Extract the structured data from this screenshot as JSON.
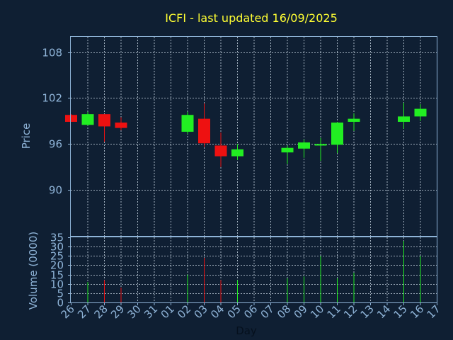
{
  "colors": {
    "background": "#0f1f33",
    "axis": "#8fb4d8",
    "grid": "#c9d6e3",
    "title": "#ffff33",
    "label": "#8fb4d8",
    "up": "#22ee22",
    "down": "#ee1111"
  },
  "chart_data": {
    "type": "candlestick",
    "title": "ICFI - last updated 16/09/2025",
    "xlabel": "Day",
    "price_panel": {
      "ylabel": "Price",
      "ylim": [
        84,
        110
      ],
      "yticks": [
        90,
        96,
        102,
        108
      ],
      "grid": true
    },
    "volume_panel": {
      "ylabel": "Volume (0000)",
      "ylim": [
        0,
        35
      ],
      "yticks": [
        0,
        5,
        10,
        15,
        20,
        25,
        30,
        35
      ],
      "grid": true
    },
    "x_ticks": [
      "26",
      "27",
      "28",
      "29",
      "30",
      "31",
      "01",
      "02",
      "03",
      "04",
      "05",
      "06",
      "07",
      "08",
      "09",
      "10",
      "11",
      "12",
      "13",
      "14",
      "15",
      "16",
      "17"
    ],
    "candles": [
      {
        "day": "26",
        "open": 99.8,
        "high": 99.9,
        "low": 98.9,
        "close": 98.9,
        "volume": 0
      },
      {
        "day": "27",
        "open": 98.5,
        "high": 100.2,
        "low": 98.4,
        "close": 99.9,
        "volume": 11
      },
      {
        "day": "28",
        "open": 99.9,
        "high": 99.9,
        "low": 96.3,
        "close": 98.3,
        "volume": 12
      },
      {
        "day": "29",
        "open": 98.8,
        "high": 99.5,
        "low": 97.8,
        "close": 98.1,
        "volume": 8
      },
      {
        "day": "02",
        "open": 97.6,
        "high": 100.2,
        "low": 97.3,
        "close": 99.8,
        "volume": 15
      },
      {
        "day": "03",
        "open": 99.3,
        "high": 101.3,
        "low": 95.6,
        "close": 96.1,
        "volume": 24
      },
      {
        "day": "04",
        "open": 95.8,
        "high": 97.5,
        "low": 93.0,
        "close": 94.4,
        "volume": 12
      },
      {
        "day": "05",
        "open": 94.4,
        "high": 96.0,
        "low": 93.9,
        "close": 95.3,
        "volume": 12
      },
      {
        "day": "08",
        "open": 94.9,
        "high": 95.8,
        "low": 93.4,
        "close": 95.5,
        "volume": 13
      },
      {
        "day": "09",
        "open": 95.4,
        "high": 96.6,
        "low": 94.2,
        "close": 96.2,
        "volume": 14
      },
      {
        "day": "10",
        "open": 95.8,
        "high": 96.8,
        "low": 93.8,
        "close": 96.0,
        "volume": 25
      },
      {
        "day": "11",
        "open": 95.9,
        "high": 98.9,
        "low": 94.8,
        "close": 98.8,
        "volume": 13
      },
      {
        "day": "12",
        "open": 98.9,
        "high": 100.0,
        "low": 97.7,
        "close": 99.3,
        "volume": 16
      },
      {
        "day": "15",
        "open": 98.9,
        "high": 101.4,
        "low": 98.0,
        "close": 99.6,
        "volume": 33
      },
      {
        "day": "16",
        "open": 99.6,
        "high": 101.2,
        "low": 99.0,
        "close": 100.6,
        "volume": 25
      }
    ]
  }
}
